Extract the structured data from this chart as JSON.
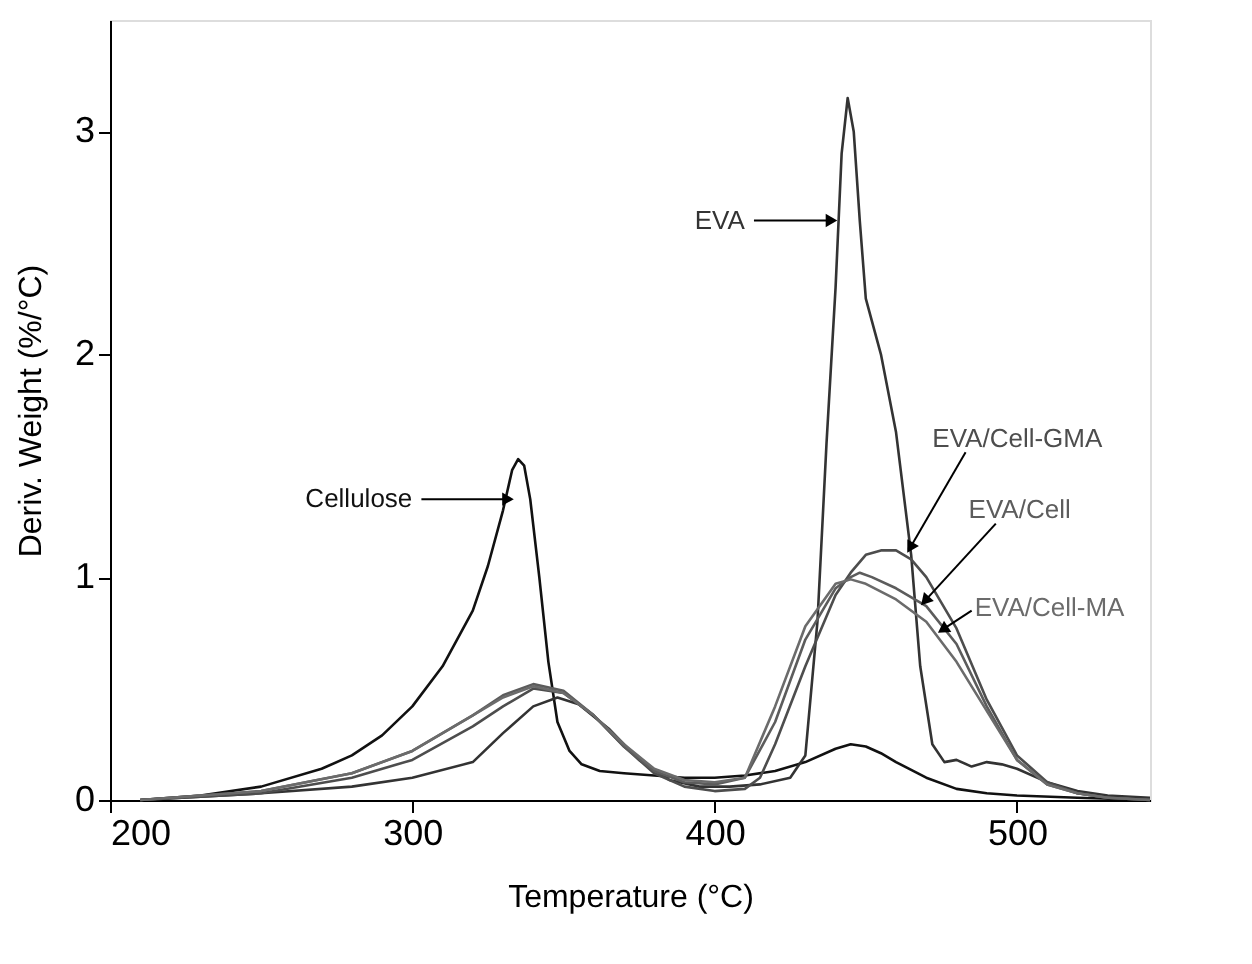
{
  "chart_data": {
    "type": "line",
    "xlabel": "Temperature (°C)",
    "ylabel": "Deriv. Weight (%/°C)",
    "xlim": [
      200,
      544
    ],
    "ylim": [
      0,
      3.5
    ],
    "xticks": [
      200,
      300,
      400,
      500
    ],
    "yticks": [
      0,
      1,
      2,
      3
    ],
    "grid": false,
    "legend": false,
    "marker": "none",
    "line_style": "solid",
    "series": [
      {
        "name": "Cellulose",
        "color": "#111111",
        "x": [
          210,
          230,
          250,
          270,
          280,
          290,
          300,
          310,
          320,
          325,
          330,
          333,
          335,
          337,
          339,
          342,
          345,
          348,
          352,
          356,
          362,
          370,
          380,
          390,
          400,
          410,
          420,
          430,
          440,
          445,
          450,
          455,
          460,
          470,
          480,
          490,
          500,
          520,
          544
        ],
        "values": [
          0,
          0.02,
          0.06,
          0.14,
          0.2,
          0.29,
          0.42,
          0.6,
          0.85,
          1.05,
          1.3,
          1.48,
          1.53,
          1.5,
          1.35,
          1.0,
          0.62,
          0.35,
          0.22,
          0.16,
          0.13,
          0.12,
          0.11,
          0.1,
          0.1,
          0.11,
          0.13,
          0.17,
          0.23,
          0.25,
          0.24,
          0.21,
          0.17,
          0.1,
          0.05,
          0.03,
          0.02,
          0.01,
          0
        ]
      },
      {
        "name": "EVA",
        "color": "#333333",
        "x": [
          210,
          250,
          280,
          300,
          320,
          330,
          340,
          348,
          355,
          365,
          375,
          385,
          395,
          405,
          415,
          425,
          430,
          434,
          437,
          440,
          442,
          444,
          446,
          448,
          450,
          455,
          460,
          465,
          468,
          472,
          476,
          480,
          485,
          490,
          495,
          500,
          510,
          520,
          530,
          544
        ],
        "values": [
          0,
          0.03,
          0.06,
          0.1,
          0.17,
          0.3,
          0.42,
          0.46,
          0.43,
          0.32,
          0.18,
          0.09,
          0.06,
          0.06,
          0.07,
          0.1,
          0.2,
          0.8,
          1.6,
          2.3,
          2.9,
          3.15,
          3.0,
          2.6,
          2.25,
          2.0,
          1.65,
          1.1,
          0.6,
          0.25,
          0.17,
          0.18,
          0.15,
          0.17,
          0.16,
          0.14,
          0.08,
          0.04,
          0.02,
          0.01
        ]
      },
      {
        "name": "EVA/Cell-GMA",
        "color": "#4d4d4d",
        "x": [
          210,
          250,
          280,
          300,
          320,
          330,
          340,
          350,
          360,
          370,
          380,
          390,
          400,
          410,
          415,
          420,
          430,
          440,
          445,
          450,
          455,
          460,
          465,
          470,
          480,
          490,
          500,
          510,
          520,
          530,
          544
        ],
        "values": [
          0,
          0.03,
          0.1,
          0.18,
          0.33,
          0.42,
          0.5,
          0.48,
          0.38,
          0.24,
          0.12,
          0.06,
          0.04,
          0.05,
          0.1,
          0.25,
          0.6,
          0.92,
          1.02,
          1.1,
          1.12,
          1.12,
          1.08,
          1.0,
          0.77,
          0.45,
          0.2,
          0.08,
          0.03,
          0.01,
          0
        ]
      },
      {
        "name": "EVA/Cell",
        "color": "#5c5c5c",
        "x": [
          210,
          250,
          280,
          300,
          320,
          330,
          340,
          350,
          360,
          370,
          380,
          390,
          400,
          410,
          420,
          430,
          440,
          445,
          448,
          452,
          460,
          470,
          480,
          490,
          500,
          510,
          520,
          530,
          544
        ],
        "values": [
          0,
          0.04,
          0.12,
          0.22,
          0.38,
          0.47,
          0.52,
          0.49,
          0.38,
          0.24,
          0.13,
          0.08,
          0.07,
          0.1,
          0.35,
          0.72,
          0.95,
          1.0,
          1.02,
          1.0,
          0.95,
          0.87,
          0.7,
          0.42,
          0.18,
          0.07,
          0.03,
          0.01,
          0
        ]
      },
      {
        "name": "EVA/Cell-MA",
        "color": "#6b6b6b",
        "x": [
          210,
          250,
          280,
          300,
          320,
          330,
          340,
          350,
          360,
          370,
          380,
          390,
          400,
          410,
          420,
          430,
          440,
          445,
          450,
          460,
          470,
          480,
          490,
          500,
          510,
          520,
          530,
          544
        ],
        "values": [
          0,
          0.04,
          0.12,
          0.22,
          0.38,
          0.46,
          0.51,
          0.48,
          0.38,
          0.25,
          0.14,
          0.09,
          0.08,
          0.1,
          0.42,
          0.78,
          0.97,
          0.99,
          0.97,
          0.9,
          0.8,
          0.62,
          0.4,
          0.18,
          0.07,
          0.03,
          0.01,
          0
        ]
      }
    ]
  }
}
